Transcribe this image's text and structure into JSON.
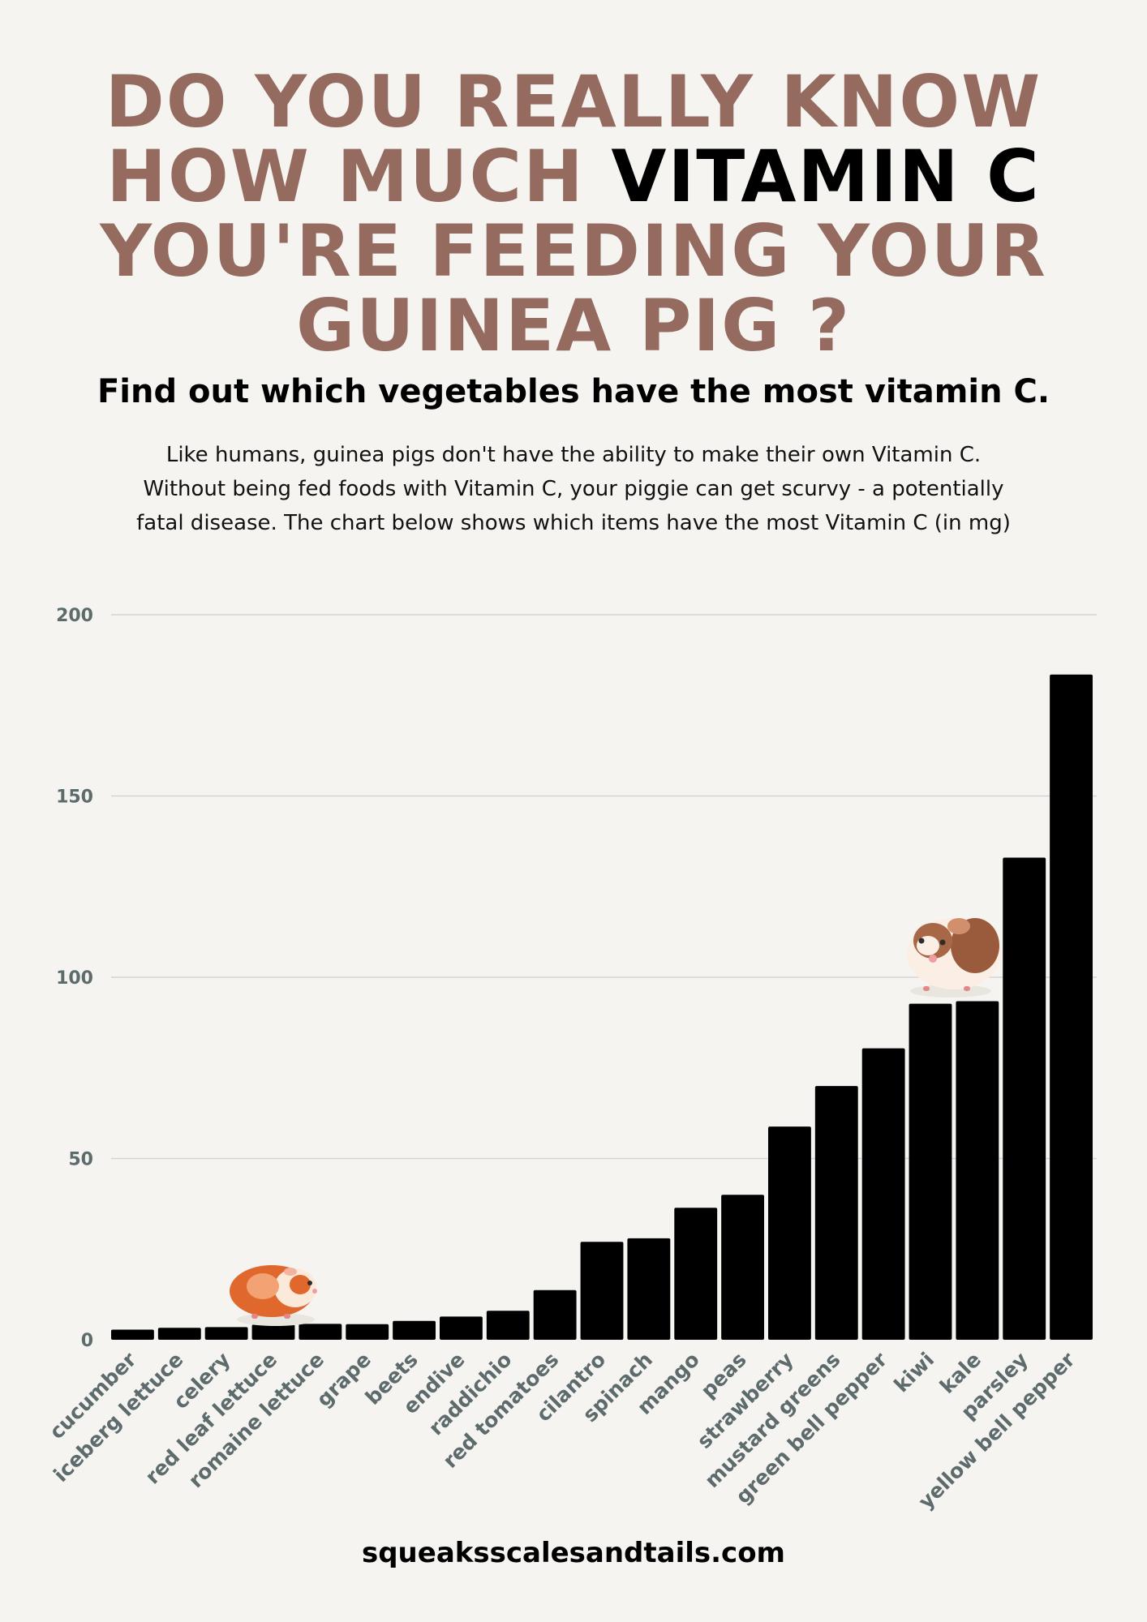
{
  "header": {
    "line1": "DO YOU REALLY KNOW",
    "line2_prefix": "HOW MUCH ",
    "line2_highlight": "VITAMIN C",
    "line3": "YOU'RE FEEDING YOUR",
    "line4": "GUINEA PIG ?"
  },
  "subtitle": "Find out which vegetables have the most vitamin C.",
  "intro": {
    "line1": "Like humans, guinea pigs don't have the ability to make their own Vitamin C.",
    "line2": "Without being fed foods with Vitamin C, your piggie can get scurvy - a potentially",
    "line3": "fatal disease.  The chart below shows which items have the most Vitamin C (in mg)"
  },
  "footer": "squeaksscalesandtails.com",
  "colors": {
    "headline": "#956b5f",
    "bars": "#000000",
    "axis_labels": "#5d6b6d",
    "grid": "#d4d4d4",
    "background": "#f5f4f1"
  },
  "illustrations": [
    "guinea-pig-orange-icon",
    "guinea-pig-brown-icon"
  ],
  "chart_data": {
    "type": "bar",
    "categories": [
      "cucumber",
      "iceberg lettuce",
      "celery",
      "red leaf lettuce",
      "romaine lettuce",
      "grape",
      "beets",
      "endive",
      "raddichio",
      "red tomatoes",
      "cilantro",
      "spinach",
      "mango",
      "peas",
      "strawberry",
      "mustard greens",
      "green bell pepper",
      "kiwi",
      "kale",
      "parsley",
      "yellow bell pepper"
    ],
    "values": [
      2.8,
      3.3,
      3.5,
      4.2,
      4.4,
      4.3,
      5.2,
      6.4,
      8.0,
      13.7,
      27,
      28,
      36.4,
      40,
      58.8,
      70,
      80.4,
      92.7,
      93.4,
      133,
      183.5
    ],
    "ylim": [
      0,
      200
    ],
    "yticks": [
      "0",
      "50",
      "100",
      "150",
      "200"
    ],
    "grid": true,
    "title": "",
    "xlabel": "",
    "ylabel": ""
  }
}
